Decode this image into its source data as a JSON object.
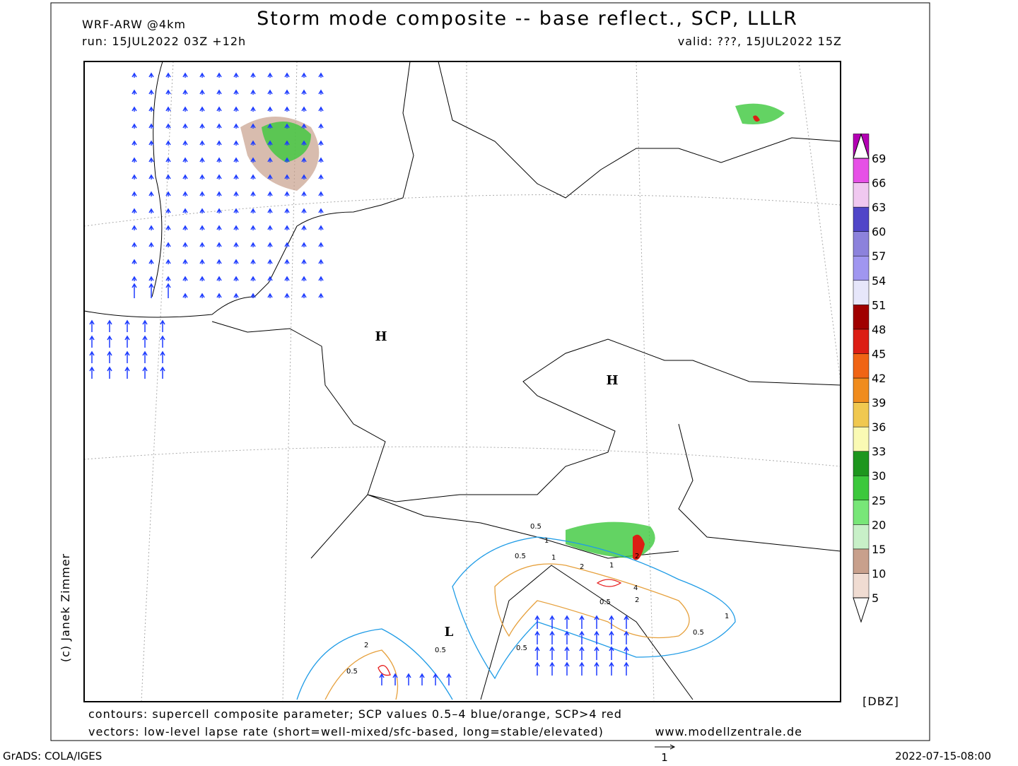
{
  "header": {
    "model": "WRF-ARW @4km",
    "title": "Storm mode composite -- base reflect., SCP, LLLR",
    "run": "run: 15JUL2022 03Z +12h",
    "valid": "valid: ???, 15JUL2022 15Z"
  },
  "credit": "(c) Janek Zimmer",
  "pressure_centers": [
    {
      "label": "H"
    },
    {
      "label": "H"
    },
    {
      "label": "L"
    }
  ],
  "contour_labels": [
    "0.5",
    "1",
    "0.5",
    "1",
    "2",
    "1",
    "2",
    "4",
    "2",
    "0.5",
    "1",
    "0.5",
    "0.5",
    "2",
    "0.5",
    "0.5"
  ],
  "colorbar": {
    "unit": "[DBZ]",
    "levels": [
      5,
      10,
      15,
      20,
      25,
      30,
      33,
      36,
      39,
      42,
      45,
      48,
      51,
      54,
      57,
      60,
      63,
      66,
      69
    ],
    "colors": [
      "#f0dcd2",
      "#c8a08c",
      "#c8f0c8",
      "#78e678",
      "#3cc83c",
      "#1e961e",
      "#fafab4",
      "#f0c850",
      "#f08c1e",
      "#f06414",
      "#dc1e14",
      "#a00000",
      "#e6e6fa",
      "#a096f0",
      "#8c82dc",
      "#5046c8",
      "#f0c8f0",
      "#e650e6",
      "#b400b4"
    ],
    "end_color": "#ffffff"
  },
  "footer": {
    "line1": "contours: supercell composite parameter; SCP values 0.5–4 blue/orange, SCP>4 red",
    "line2": "vectors: low-level lapse rate (short=well-mixed/sfc-based, long=stable/elevated)",
    "site": "www.modellzentrale.de",
    "grads": "GrADS: COLA/IGES",
    "timestamp": "2022-07-15-08:00",
    "vector_scale": "1"
  }
}
